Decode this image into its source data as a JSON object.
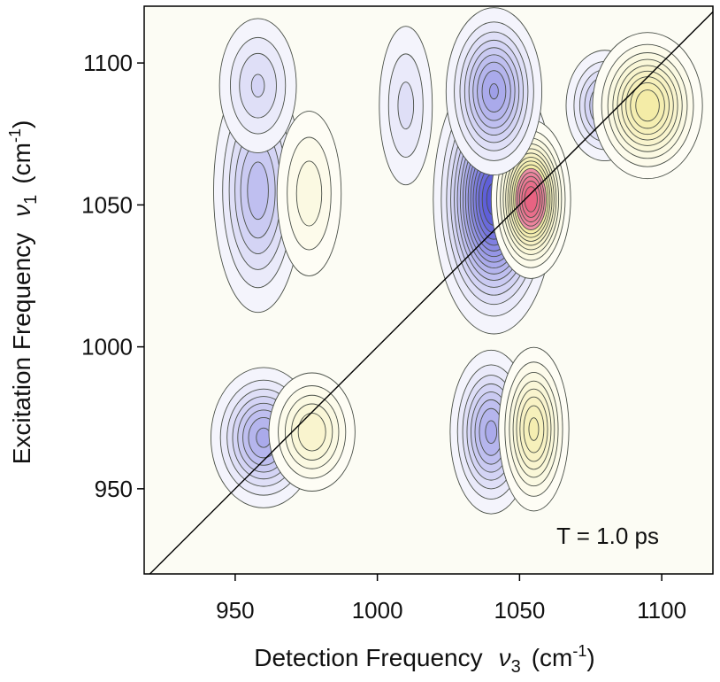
{
  "chart_data": {
    "type": "contour",
    "annotation": "T = 1.0 ps",
    "xlabel": {
      "text": "Detection Frequency",
      "symbol": "ν",
      "subscript": "3",
      "unit": "(cm",
      "exponent": "-1",
      "close": ")"
    },
    "ylabel": {
      "text": "Excitation Frequency",
      "symbol": "ν",
      "subscript": "1",
      "unit": "(cm",
      "exponent": "-1",
      "close": ")"
    },
    "xlim": [
      918,
      1118
    ],
    "ylim": [
      920,
      1120
    ],
    "xticks": [
      950,
      1000,
      1050,
      1100
    ],
    "yticks": [
      950,
      1000,
      1050,
      1100
    ],
    "diagonal": true,
    "negative_color": "#3a3ad0",
    "positive_color": "#e8d84a",
    "peak_color": "#e0305a",
    "peaks": [
      {
        "x": 958,
        "y": 1055,
        "amplitude": -0.4,
        "width_x": 8,
        "width_y": 22
      },
      {
        "x": 976,
        "y": 1054,
        "amplitude": 0.22,
        "width_x": 7,
        "width_y": 18
      },
      {
        "x": 958,
        "y": 1092,
        "amplitude": -0.25,
        "width_x": 8,
        "width_y": 14
      },
      {
        "x": 960,
        "y": 968,
        "amplitude": -0.5,
        "width_x": 9,
        "width_y": 12
      },
      {
        "x": 977,
        "y": 970,
        "amplitude": 0.36,
        "width_x": 8,
        "width_y": 11
      },
      {
        "x": 1041,
        "y": 1052,
        "amplitude": -1.0,
        "width_x": 9,
        "width_y": 20
      },
      {
        "x": 1054,
        "y": 1052,
        "amplitude": 0.9,
        "width_x": 6,
        "width_y": 12
      },
      {
        "x": 1040,
        "y": 970,
        "amplitude": -0.5,
        "width_x": 7,
        "width_y": 14
      },
      {
        "x": 1055,
        "y": 971,
        "amplitude": 0.5,
        "width_x": 6,
        "width_y": 14
      },
      {
        "x": 1041,
        "y": 1090,
        "amplitude": -0.55,
        "width_x": 8,
        "width_y": 14
      },
      {
        "x": 1080,
        "y": 1085,
        "amplitude": -0.4,
        "width_x": 7,
        "width_y": 10
      },
      {
        "x": 1095,
        "y": 1085,
        "amplitude": 0.6,
        "width_x": 9,
        "width_y": 12
      },
      {
        "x": 1010,
        "y": 1085,
        "amplitude": -0.2,
        "width_x": 6,
        "width_y": 18
      }
    ]
  }
}
